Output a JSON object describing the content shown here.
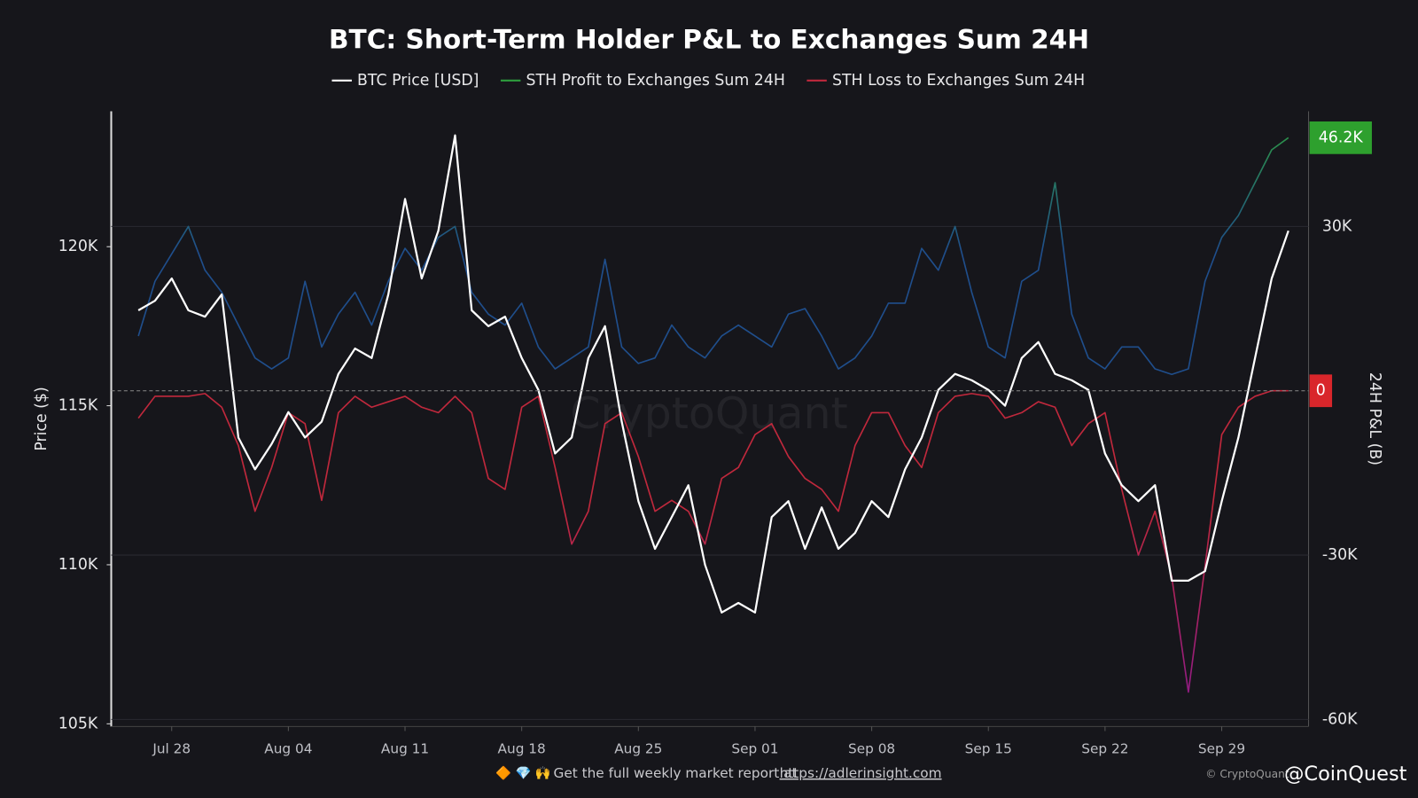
{
  "chart_data": {
    "type": "line",
    "title": "BTC: Short-Term Holder P&L to Exchanges Sum 24H",
    "y_label": "Price ($)",
    "y2_label": "24H P&L (B)",
    "watermark": "CryptoQuant",
    "categories": [
      null,
      null,
      "Jul 28",
      null,
      null,
      null,
      null,
      null,
      null,
      "Aug 04",
      null,
      null,
      null,
      null,
      null,
      null,
      "Aug 11",
      null,
      null,
      null,
      null,
      null,
      null,
      "Aug 18",
      null,
      null,
      null,
      null,
      null,
      null,
      "Aug 25",
      null,
      null,
      null,
      null,
      null,
      null,
      "Sep 01",
      null,
      null,
      null,
      null,
      null,
      null,
      "Sep 08",
      null,
      null,
      null,
      null,
      null,
      null,
      "Sep 15",
      null,
      null,
      null,
      null,
      null,
      null,
      "Sep 22",
      null,
      null,
      null,
      null,
      null,
      null,
      "Sep 29",
      null,
      null,
      null,
      null
    ],
    "series": [
      {
        "name": "BTC Price [USD]",
        "color": "#ffffff",
        "values": [
          118000,
          118300,
          119000,
          118000,
          117800,
          118500,
          114000,
          113000,
          113800,
          114800,
          114000,
          114500,
          116000,
          116800,
          116500,
          118500,
          121500,
          119000,
          120500,
          123500,
          118000,
          117500,
          117800,
          116500,
          115500,
          113500,
          114000,
          116500,
          117500,
          114500,
          112000,
          110500,
          111500,
          112500,
          110000,
          108500,
          108800,
          108500,
          111500,
          112000,
          110500,
          111800,
          110500,
          111000,
          112000,
          111500,
          113000,
          114000,
          115500,
          116000,
          115800,
          115500,
          115000,
          116500,
          117000,
          116000,
          115800,
          115500,
          113500,
          112500,
          112000,
          112500,
          109500,
          109500,
          109800,
          112000,
          114000,
          116500,
          119000,
          120500
        ]
      },
      {
        "name": "STH Profit to Exchanges Sum 24H",
        "color": "#2e9e3e",
        "color_low": "#1f4e8c",
        "axis": "y2",
        "values": [
          10000,
          20000,
          25000,
          30000,
          22000,
          18000,
          12000,
          6000,
          4000,
          6000,
          20000,
          8000,
          14000,
          18000,
          12000,
          20000,
          26000,
          22000,
          28000,
          30000,
          18000,
          14000,
          12000,
          16000,
          8000,
          4000,
          6000,
          8000,
          24000,
          8000,
          5000,
          6000,
          12000,
          8000,
          6000,
          10000,
          12000,
          10000,
          8000,
          14000,
          15000,
          10000,
          4000,
          6000,
          10000,
          16000,
          16000,
          26000,
          22000,
          30000,
          18000,
          8000,
          6000,
          20000,
          22000,
          38000,
          14000,
          6000,
          4000,
          8000,
          8000,
          4000,
          3000,
          4000,
          20000,
          28000,
          32000,
          38000,
          44000,
          46200
        ]
      },
      {
        "name": "STH Loss to Exchanges Sum 24H",
        "color": "#c0283c",
        "color_low": "#8b1a8f",
        "axis": "y2",
        "values": [
          -5000,
          -1000,
          -1000,
          -1000,
          -500,
          -3000,
          -10000,
          -22000,
          -14000,
          -4000,
          -6000,
          -20000,
          -4000,
          -1000,
          -3000,
          -2000,
          -1000,
          -3000,
          -4000,
          -1000,
          -4000,
          -16000,
          -18000,
          -3000,
          -1000,
          -14000,
          -28000,
          -22000,
          -6000,
          -4000,
          -12000,
          -22000,
          -20000,
          -22000,
          -28000,
          -16000,
          -14000,
          -8000,
          -6000,
          -12000,
          -16000,
          -18000,
          -22000,
          -10000,
          -4000,
          -4000,
          -10000,
          -14000,
          -4000,
          -1000,
          -500,
          -1000,
          -5000,
          -4000,
          -2000,
          -3000,
          -10000,
          -6000,
          -4000,
          -18000,
          -30000,
          -22000,
          -34000,
          -55000,
          -32000,
          -8000,
          -3000,
          -1000,
          0,
          0
        ]
      }
    ],
    "ylim": [
      105000,
      124200
    ],
    "yticks": [
      {
        "value": 105000,
        "label": "105K"
      },
      {
        "value": 110000,
        "label": "110K"
      },
      {
        "value": 115000,
        "label": "115K"
      },
      {
        "value": 120000,
        "label": "120K"
      }
    ],
    "y2lim": [
      -60800,
      50700
    ],
    "y2ticks": [
      {
        "value": -60000,
        "label": "-60K"
      },
      {
        "value": -30000,
        "label": "-30K"
      },
      {
        "value": 30000,
        "label": "30K"
      }
    ],
    "grid": true,
    "annotations": [
      {
        "value": 46200,
        "label": "46.2K",
        "color": "#2ea02e"
      },
      {
        "value": 0,
        "label": "0",
        "color": "#d9262b"
      }
    ],
    "footer": {
      "icons": "🔶 💎 🙌",
      "text": "Get the full weekly market report at",
      "link": "https://adlerinsight.com",
      "credit": "© CryptoQuant",
      "brand": "@CoinQuest"
    }
  }
}
